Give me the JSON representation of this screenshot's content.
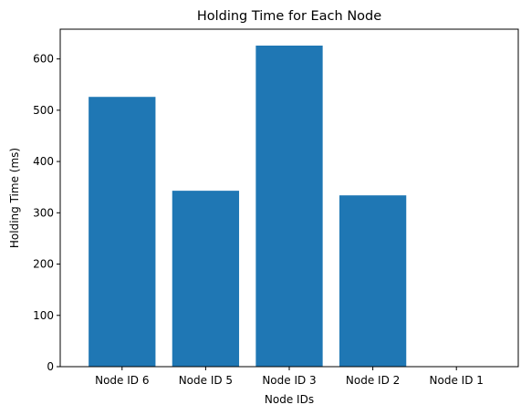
{
  "chart_data": {
    "type": "bar",
    "title": "Holding Time for Each Node",
    "xlabel": "Node IDs",
    "ylabel": "Holding Time (ms)",
    "categories": [
      "Node ID 6",
      "Node ID 5",
      "Node ID 3",
      "Node ID 2",
      "Node ID 1"
    ],
    "values": [
      526,
      343,
      626,
      334,
      0
    ],
    "ylim": [
      0,
      658
    ],
    "yticks": [
      0,
      100,
      200,
      300,
      400,
      500,
      600
    ],
    "bar_color": "#1f77b4",
    "grid": false,
    "legend": "none"
  }
}
